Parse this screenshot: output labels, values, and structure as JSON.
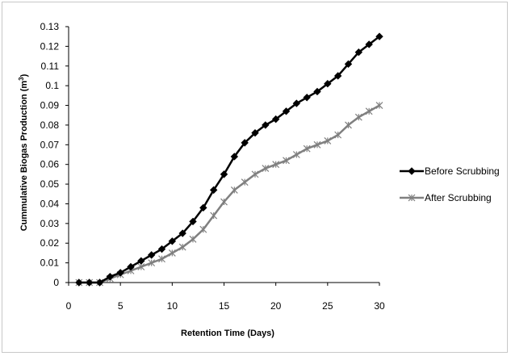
{
  "chart_data": {
    "type": "line",
    "title": "",
    "xlabel": "Retention Time (Days)",
    "ylabel": "Cummulative Biogas Production (m",
    "ylabel_superscript": "3",
    "ylabel_suffix": ")",
    "xlim": [
      0,
      30
    ],
    "ylim": [
      0,
      0.13
    ],
    "xticks": [
      0,
      5,
      10,
      15,
      20,
      25,
      30
    ],
    "yticks": [
      0,
      0.01,
      0.02,
      0.03,
      0.04,
      0.05,
      0.06,
      0.07,
      0.08,
      0.09,
      0.1,
      0.11,
      0.12,
      0.13
    ],
    "grid": false,
    "legend_position": "right",
    "x": [
      1,
      2,
      3,
      4,
      5,
      6,
      7,
      8,
      9,
      10,
      11,
      12,
      13,
      14,
      15,
      16,
      17,
      18,
      19,
      20,
      21,
      22,
      23,
      24,
      25,
      26,
      27,
      28,
      29,
      30
    ],
    "series": [
      {
        "name": "Before Scrubbing",
        "color": "#000000",
        "marker": "diamond",
        "values": [
          0,
          0,
          0,
          0.003,
          0.005,
          0.008,
          0.011,
          0.014,
          0.017,
          0.021,
          0.025,
          0.031,
          0.038,
          0.047,
          0.055,
          0.064,
          0.071,
          0.076,
          0.08,
          0.083,
          0.087,
          0.091,
          0.094,
          0.097,
          0.101,
          0.105,
          0.111,
          0.117,
          0.121,
          0.125
        ]
      },
      {
        "name": "After Scrubbing",
        "color": "#808080",
        "marker": "asterisk",
        "values": [
          0,
          0,
          0,
          0.002,
          0.004,
          0.006,
          0.008,
          0.01,
          0.012,
          0.015,
          0.018,
          0.022,
          0.027,
          0.034,
          0.041,
          0.047,
          0.051,
          0.055,
          0.058,
          0.06,
          0.062,
          0.065,
          0.068,
          0.07,
          0.072,
          0.075,
          0.08,
          0.084,
          0.087,
          0.09
        ]
      }
    ]
  }
}
